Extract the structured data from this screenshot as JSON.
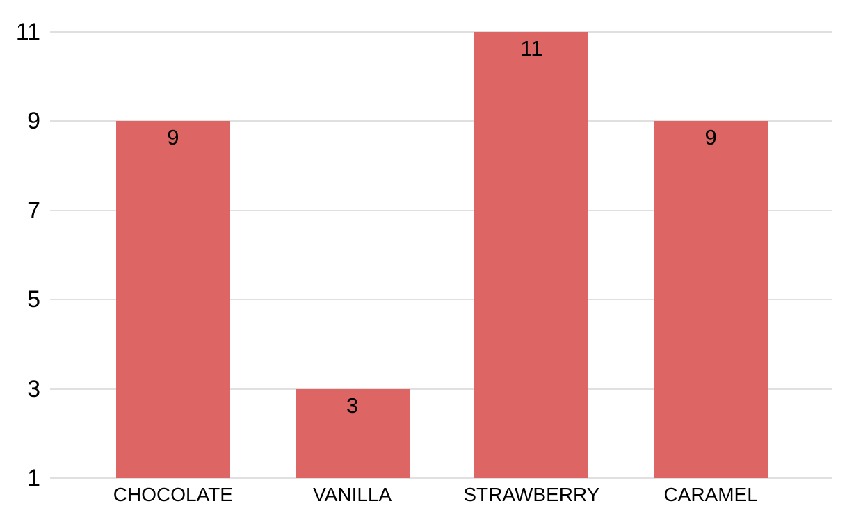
{
  "chart_data": {
    "type": "bar",
    "categories": [
      "CHOCOLATE",
      "VANILLA",
      "STRAWBERRY",
      "CARAMEL"
    ],
    "values": [
      9,
      3,
      11,
      9
    ],
    "data_labels": [
      "9",
      "3",
      "11",
      "9"
    ],
    "title": "",
    "xlabel": "",
    "ylabel": "",
    "ylim": [
      1,
      11
    ],
    "yticks": [
      1,
      3,
      5,
      7,
      9,
      11
    ],
    "grid": true,
    "legend_position": "none",
    "bar_color": "#dd6665",
    "gridline_color": "#e0e0e0",
    "text_color": "#000000",
    "background_color": "#ffffff"
  }
}
